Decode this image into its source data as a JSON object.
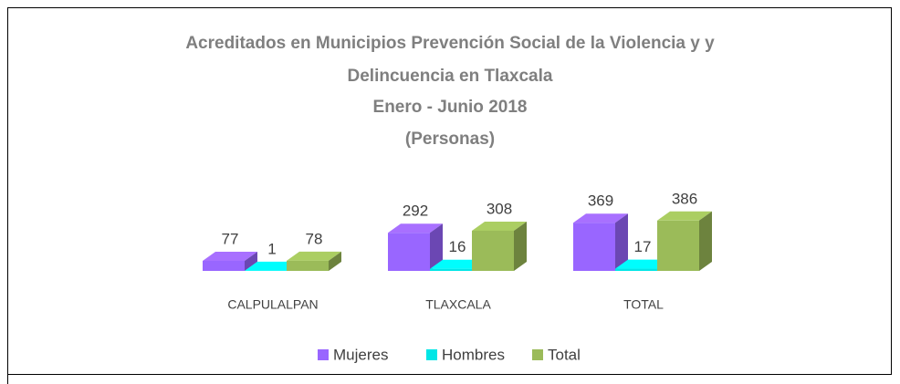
{
  "chart_data": {
    "type": "bar3d",
    "title": [
      "Acreditados en Municipios Prevención Social de la Violencia y y",
      "Delincuencia en Tlaxcala",
      "Enero - Junio 2018",
      "(Personas)"
    ],
    "categories": [
      "CALPULALPAN",
      "TLAXCALA",
      "TOTAL"
    ],
    "series": [
      {
        "name": "Mujeres",
        "color": "#9966ff",
        "values": [
          77,
          292,
          369
        ]
      },
      {
        "name": "Hombres",
        "color": "#00e6e6",
        "values": [
          1,
          16,
          17
        ]
      },
      {
        "name": "Total",
        "color": "#9bbb59",
        "values": [
          78,
          308,
          386
        ]
      }
    ],
    "legend": "bottom"
  }
}
